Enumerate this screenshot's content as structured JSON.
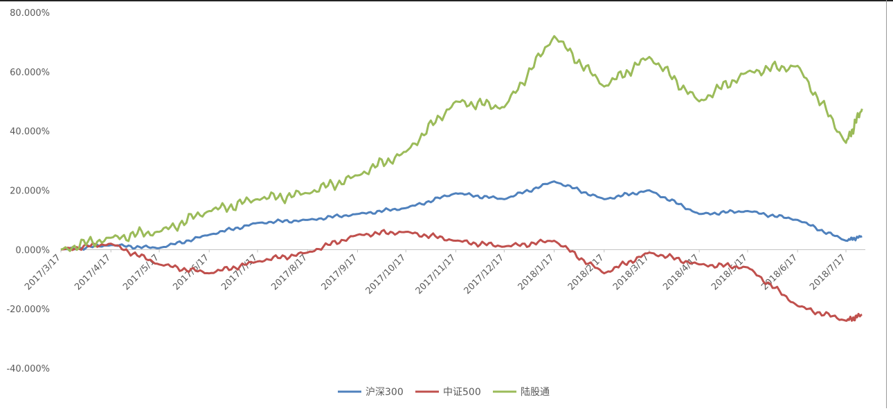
{
  "chart_data": {
    "type": "line",
    "title": "",
    "xlabel": "",
    "ylabel": "",
    "ylim": [
      -0.4,
      0.8
    ],
    "y_tick_labels": [
      "80.000%",
      "60.000%",
      "40.000%",
      "20.000%",
      "0.000%",
      "-20.000%",
      "-40.000%"
    ],
    "y_ticks": [
      0.8,
      0.6,
      0.4,
      0.2,
      0.0,
      -0.2,
      -0.4
    ],
    "x_tick_labels": [
      "2017/3/17",
      "2017/4/17",
      "2017/5/17",
      "2017/6/17",
      "2017/7/17",
      "2017/8/17",
      "2017/9/17",
      "2017/10/17",
      "2017/11/17",
      "2017/12/17",
      "2018/1/17",
      "2018/2/17",
      "2018/3/17",
      "2018/4/17",
      "2018/5/17",
      "2018/6/17",
      "2018/7/17"
    ],
    "grid": false,
    "legend_position": "bottom",
    "x": [
      "2017/3/17",
      "2017/4/17",
      "2017/5/17",
      "2017/6/17",
      "2017/7/17",
      "2017/8/17",
      "2017/9/17",
      "2017/10/17",
      "2017/11/17",
      "2017/12/17",
      "2018/1/17",
      "2018/2/17",
      "2018/3/17",
      "2018/4/17",
      "2018/5/17",
      "2018/6/17",
      "2018/7/17",
      "2018/7/27"
    ],
    "series": [
      {
        "name": "沪深300",
        "color": "#4F81BD",
        "values": [
          0.0,
          0.015,
          0.005,
          0.05,
          0.09,
          0.1,
          0.12,
          0.14,
          0.19,
          0.17,
          0.23,
          0.17,
          0.2,
          0.12,
          0.13,
          0.1,
          0.03,
          0.045
        ]
      },
      {
        "name": "中证500",
        "color": "#C0504D",
        "values": [
          0.0,
          0.02,
          -0.05,
          -0.08,
          -0.04,
          -0.01,
          0.05,
          0.06,
          0.03,
          0.01,
          0.03,
          -0.08,
          -0.01,
          -0.05,
          -0.06,
          -0.19,
          -0.24,
          -0.22
        ]
      },
      {
        "name": "陆股通",
        "color": "#9BBB59",
        "values": [
          0.0,
          0.04,
          0.06,
          0.13,
          0.17,
          0.19,
          0.25,
          0.33,
          0.5,
          0.48,
          0.72,
          0.55,
          0.65,
          0.5,
          0.6,
          0.62,
          0.36,
          0.475
        ]
      }
    ]
  }
}
